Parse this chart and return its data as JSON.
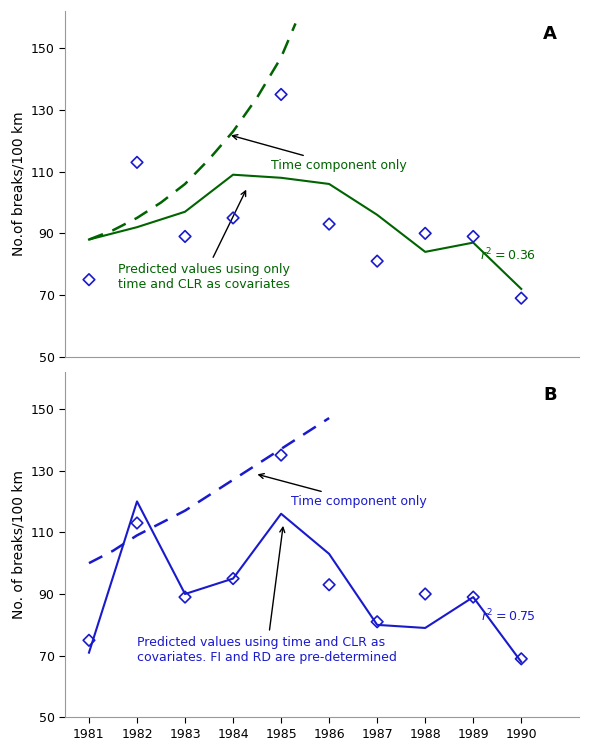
{
  "years": [
    1981,
    1982,
    1983,
    1984,
    1985,
    1986,
    1987,
    1988,
    1989,
    1990
  ],
  "observed_A": [
    75,
    113,
    89,
    95,
    135,
    93,
    81,
    90,
    89,
    69
  ],
  "predicted_A": [
    88,
    92,
    97,
    109,
    108,
    106,
    96,
    84,
    87,
    72
  ],
  "time_only_A_x": [
    1981.0,
    1981.5,
    1982.0,
    1982.5,
    1983.0,
    1983.5,
    1984.0,
    1984.5,
    1985.0,
    1985.3
  ],
  "time_only_A_y": [
    88,
    91,
    95,
    100,
    106,
    114,
    123,
    134,
    147,
    158
  ],
  "observed_B": [
    75,
    113,
    89,
    95,
    135,
    93,
    81,
    90,
    89,
    69
  ],
  "predicted_B": [
    71,
    120,
    90,
    95,
    116,
    103,
    80,
    79,
    89,
    68
  ],
  "time_only_B_x": [
    1981.0,
    1981.5,
    1982.0,
    1982.5,
    1983.0,
    1983.5,
    1984.0,
    1984.5,
    1985.0,
    1985.5,
    1986.0
  ],
  "time_only_B_y": [
    100,
    104,
    109,
    113,
    117,
    122,
    127,
    132,
    137,
    142,
    147
  ],
  "color_A": "#006400",
  "color_B": "#1a1acd",
  "marker_color_A": "#1a1acd",
  "marker_color_B": "#1a1acd",
  "r2_A": "$r^2 = 0.36$",
  "r2_B": "$r^2 = 0.75$",
  "ylabel_A": "No.of breaks/100 km",
  "ylabel_B": "No. of breaks/100 km",
  "ylim": [
    50,
    162
  ],
  "yticks": [
    50,
    70,
    90,
    110,
    130,
    150
  ],
  "label_A": "A",
  "label_B": "B",
  "annotation_time_A": "Time component only",
  "annotation_pred_A": "Predicted values using only\ntime and CLR as covariates",
  "annotation_time_B": "Time component only",
  "annotation_pred_B": "Predicted values using time and CLR as\ncovariates. FI and RD are pre-determined"
}
